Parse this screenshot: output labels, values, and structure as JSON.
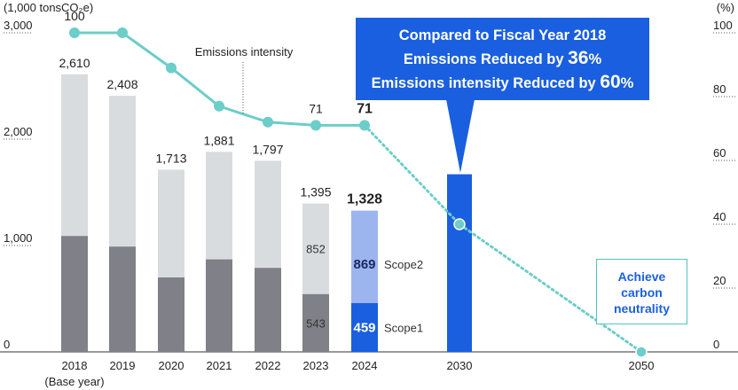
{
  "chart_data": {
    "type": "bar+line",
    "left_axis_title": "(1,000 tonsCO₂e)",
    "right_axis_title": "(%)",
    "left_ticks": [
      "0",
      "1,000",
      "2,000",
      "3,000"
    ],
    "right_ticks": [
      "0",
      "20",
      "40",
      "60",
      "80",
      "100"
    ],
    "ylim_left": [
      0,
      3000
    ],
    "ylim_right": [
      0,
      100
    ],
    "categories": [
      "2018",
      "2019",
      "2020",
      "2021",
      "2022",
      "2023",
      "2024",
      "2030",
      "2050"
    ],
    "base_year_note": "(Base year)",
    "bars": [
      {
        "year": "2018",
        "scope1": 1090,
        "total": 2610,
        "total_label": "2,610"
      },
      {
        "year": "2019",
        "scope1": 990,
        "total": 2408,
        "total_label": "2,408"
      },
      {
        "year": "2020",
        "scope1": 700,
        "total": 1713,
        "total_label": "1,713"
      },
      {
        "year": "2021",
        "scope1": 870,
        "total": 1881,
        "total_label": "1,881"
      },
      {
        "year": "2022",
        "scope1": 790,
        "total": 1797,
        "total_label": "1,797"
      },
      {
        "year": "2023",
        "scope1": 543,
        "scope2": 852,
        "total": 1395,
        "total_label": "1,395",
        "scope1_label": "543",
        "scope2_label": "852"
      },
      {
        "year": "2024",
        "scope1": 459,
        "scope2": 869,
        "total": 1328,
        "total_label": "1,328",
        "scope1_label": "459",
        "scope2_label": "869",
        "highlight": true
      },
      {
        "year": "2030",
        "total": 1670,
        "target": true
      }
    ],
    "scope_labels": {
      "scope1": "Scope1",
      "scope2": "Scope2"
    },
    "intensity": {
      "name": "Emissions intensity",
      "solid": [
        {
          "year": "2018",
          "value": 100
        },
        {
          "year": "2019",
          "value": 100
        },
        {
          "year": "2020",
          "value": 89
        },
        {
          "year": "2021",
          "value": 77
        },
        {
          "year": "2022",
          "value": 72
        },
        {
          "year": "2023",
          "value": 71
        },
        {
          "year": "2024",
          "value": 71
        }
      ],
      "projected": [
        {
          "year": "2024",
          "value": 71
        },
        {
          "year": "2030",
          "value": 40
        },
        {
          "year": "2050",
          "value": 0
        }
      ],
      "point_labels": [
        {
          "year": "2018",
          "label": "100"
        },
        {
          "year": "2023",
          "label": "71"
        },
        {
          "year": "2024",
          "label": "71"
        }
      ]
    },
    "colors": {
      "scope1": "#808088",
      "scope2": "#d9dcdf",
      "scope1_2024": "#1a5fe0",
      "scope2_2024": "#9db5ef",
      "target_bar": "#1a5fe0",
      "line": "#6ccdc9"
    }
  },
  "callout": {
    "line1": "Compared to Fiscal Year 2018",
    "line2_prefix": "Emissions Reduced by ",
    "line2_value": "36",
    "line2_suffix": "%",
    "line3_prefix": "Emissions intensity Reduced by ",
    "line3_value": "60",
    "line3_suffix": "%"
  },
  "neutrality_box": {
    "line1": "Achieve",
    "line2": "carbon",
    "line3": "neutrality"
  }
}
